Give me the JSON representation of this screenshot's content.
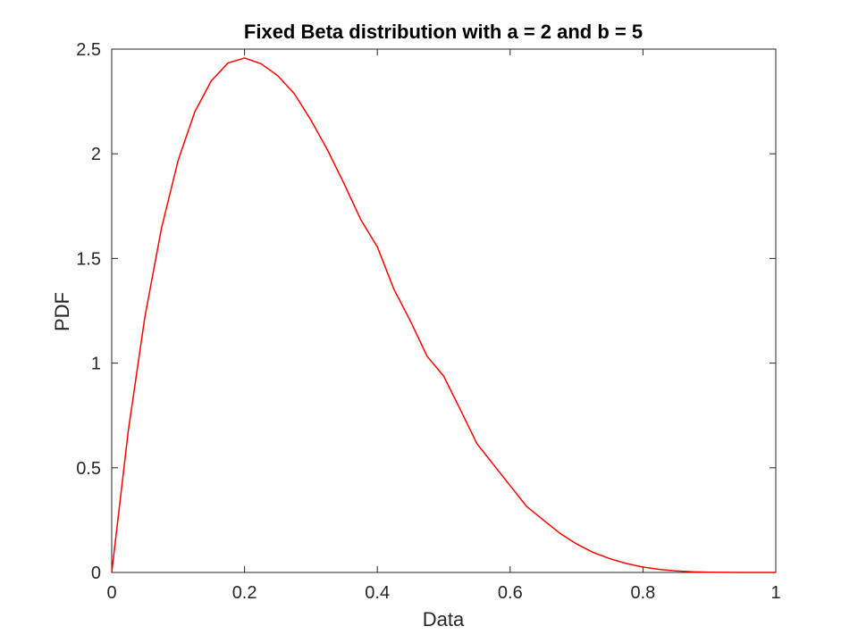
{
  "chart_data": {
    "type": "line",
    "title": "Fixed Beta distribution with a = 2 and b = 5",
    "xlabel": "Data",
    "ylabel": "PDF",
    "xlim": [
      0,
      1
    ],
    "ylim": [
      0,
      2.5
    ],
    "x_ticks": [
      "0",
      "0.2",
      "0.4",
      "0.6",
      "0.8",
      "1"
    ],
    "x_tick_values": [
      0,
      0.2,
      0.4,
      0.6,
      0.8,
      1
    ],
    "y_ticks": [
      "0",
      "0.5",
      "1",
      "1.5",
      "2",
      "2.5"
    ],
    "y_tick_values": [
      0,
      0.5,
      1,
      1.5,
      2,
      2.5
    ],
    "grid": false,
    "legend": "none",
    "series": [
      {
        "color": "#ff0000",
        "x": [
          0,
          0.025,
          0.05,
          0.075,
          0.1,
          0.125,
          0.15,
          0.175,
          0.2,
          0.225,
          0.25,
          0.275,
          0.3,
          0.325,
          0.35,
          0.375,
          0.4,
          0.425,
          0.45,
          0.475,
          0.5,
          0.525,
          0.55,
          0.575,
          0.6,
          0.625,
          0.65,
          0.675,
          0.7,
          0.725,
          0.75,
          0.775,
          0.8,
          0.825,
          0.85,
          0.875,
          0.9,
          0.925,
          0.95,
          0.975,
          1
        ],
        "y": [
          0,
          0.6776,
          1.2218,
          1.6452,
          1.9683,
          2.1997,
          2.3485,
          2.4335,
          2.4576,
          2.4299,
          2.373,
          2.2867,
          2.1609,
          2.0179,
          1.8564,
          1.6857,
          1.5552,
          1.3526,
          1.1998,
          1.0322,
          0.9375,
          0.7779,
          0.615,
          0.5148,
          0.4147,
          0.3147,
          0.2502,
          0.1869,
          0.1361,
          0.0958,
          0.0659,
          0.0428,
          0.0256,
          0.0142,
          0.0072,
          0.0032,
          0.0011,
          0.0003,
          0.0,
          0.0,
          0
        ]
      }
    ]
  },
  "colors": {
    "series": "#ff0000",
    "axes": "#262626",
    "background": "#ffffff"
  }
}
